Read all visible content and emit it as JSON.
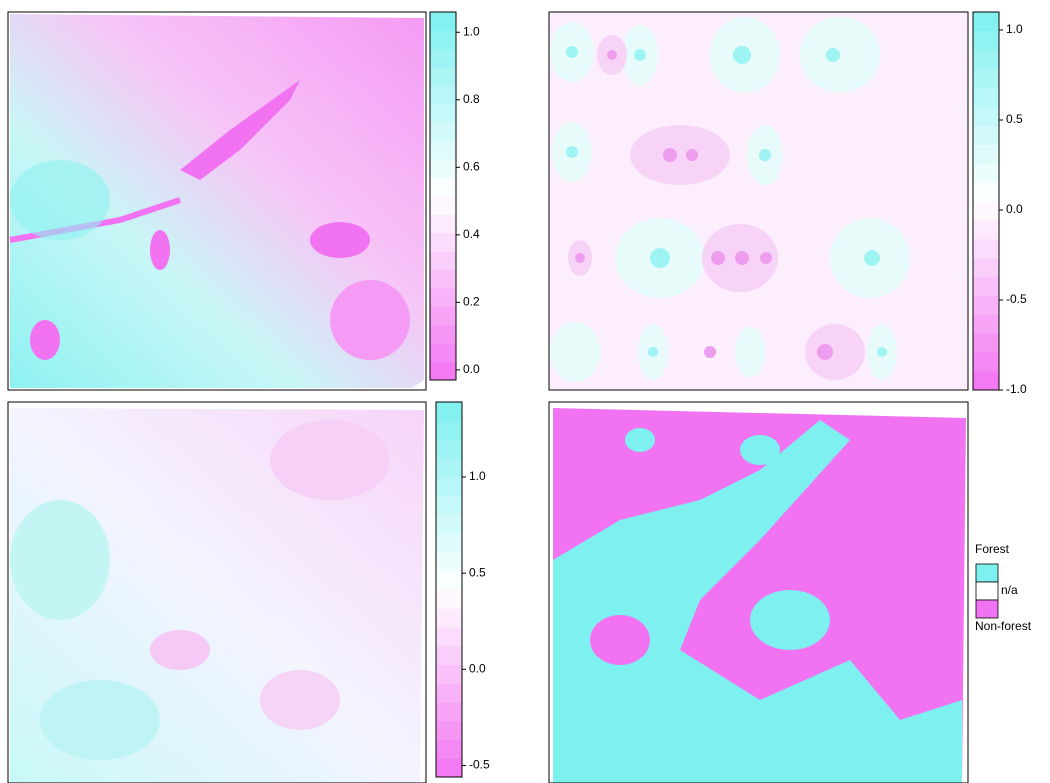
{
  "panels": [
    {
      "colorbar": {
        "lim": [
          -0.03,
          1.06
        ],
        "colors": [
          "#f273f2",
          "#ffffff",
          "#7ef0f0"
        ],
        "ticks": [
          {
            "value": 1,
            "label": "1.0"
          },
          0.8,
          0.6,
          0.4,
          0.2,
          {
            "value": 0,
            "label": "0.0"
          }
        ]
      }
    },
    {
      "colorbar": {
        "lim": [
          -1.0,
          1.1
        ],
        "colors": [
          "#f273f2",
          "#ffffff",
          "#7ef0f0"
        ],
        "ticks": [
          {
            "value": 1,
            "label": "1.0"
          },
          0.5,
          {
            "value": 0,
            "label": "0.0"
          },
          -0.5,
          {
            "value": -1,
            "label": "-1.0"
          }
        ]
      }
    },
    {
      "colorbar": {
        "lim": [
          -0.56,
          1.39
        ],
        "colors": [
          "#f273f2",
          "#ffffff",
          "#7ef0f0"
        ],
        "ticks": [
          {
            "value": 1,
            "label": "1.0"
          },
          0.5,
          {
            "value": 0,
            "label": "0.0"
          },
          -0.5
        ]
      }
    },
    {
      "legend": {
        "items": [
          {
            "label": "Forest",
            "color": "#7ef0f0"
          },
          {
            "label": "n/a",
            "color": "#ffffff"
          },
          {
            "label": "Non-forest",
            "color": "#f273f2"
          }
        ]
      }
    }
  ]
}
